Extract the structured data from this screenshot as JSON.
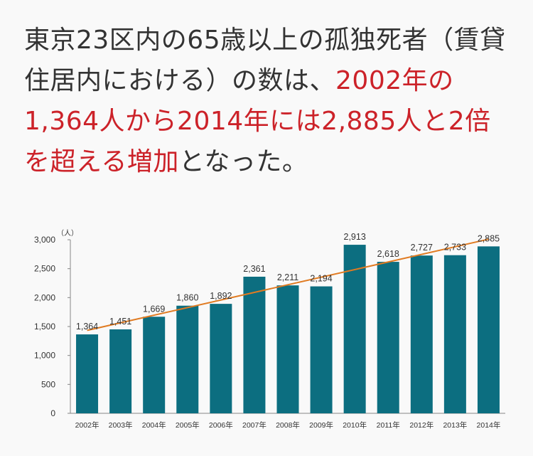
{
  "headline": {
    "part1": "東京23区内の65歳以上の孤独死者（賃貸住居内における）の数は、",
    "part2": "2002年の1,364人から2014年には2,885人と2倍を超える増加",
    "part3": "となった。"
  },
  "chart_data": {
    "type": "bar",
    "title": "",
    "xlabel": "",
    "ylabel": "",
    "unit": "（人）",
    "categories": [
      "2002年",
      "2003年",
      "2004年",
      "2005年",
      "2006年",
      "2007年",
      "2008年",
      "2009年",
      "2010年",
      "2011年",
      "2012年",
      "2013年",
      "2014年"
    ],
    "values": [
      1364,
      1451,
      1669,
      1860,
      1892,
      2361,
      2211,
      2194,
      2913,
      2618,
      2727,
      2733,
      2885
    ],
    "value_labels": [
      "1,364",
      "1,451",
      "1,669",
      "1,860",
      "1,892",
      "2,361",
      "2,211",
      "2,194",
      "2,913",
      "2,618",
      "2,727",
      "2,733",
      "2,885"
    ],
    "ylim": [
      0,
      3000
    ],
    "yticks": [
      0,
      500,
      1000,
      1500,
      2000,
      2500,
      3000
    ],
    "ytick_labels": [
      "0",
      "500",
      "1,000",
      "1,500",
      "2,000",
      "2,500",
      "3,000"
    ],
    "bar_color": "#0c6e80",
    "trendline": {
      "color": "#e07b22"
    },
    "grid": false,
    "legend": "none"
  }
}
